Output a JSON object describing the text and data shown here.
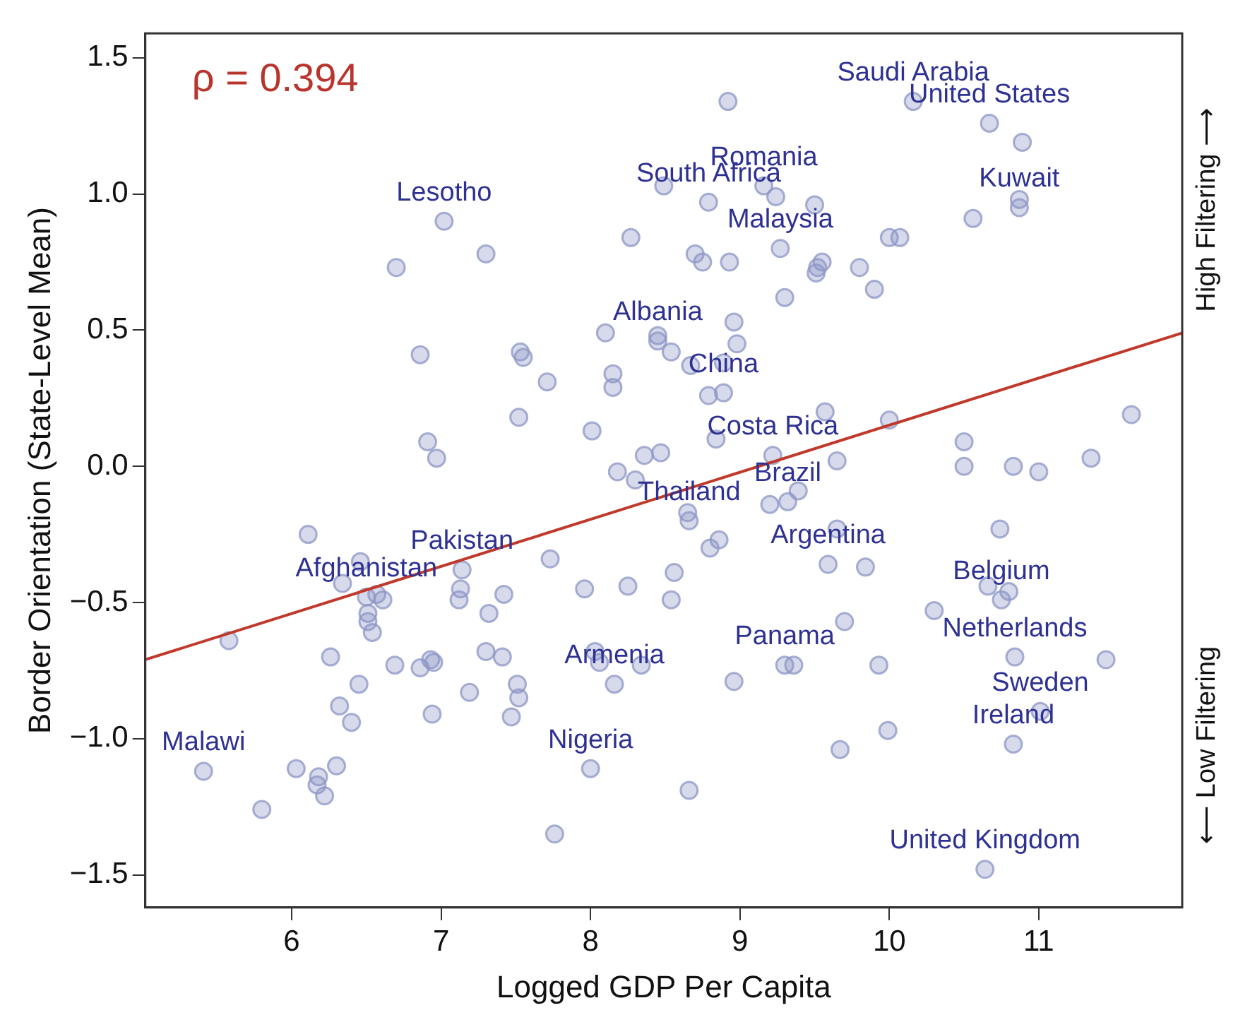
{
  "chart_data": {
    "type": "scatter",
    "xlabel": "Logged GDP Per Capita",
    "ylabel": "Border Orientation (State-Level Mean)",
    "xlim": [
      5.02,
      11.96
    ],
    "ylim": [
      -1.62,
      1.59
    ],
    "xticks": [
      6,
      7,
      8,
      9,
      10,
      11
    ],
    "yticks": [
      {
        "value": -1.5,
        "label": "−1.5"
      },
      {
        "value": -1,
        "label": "−1.0"
      },
      {
        "value": -0.5,
        "label": "−0.5"
      },
      {
        "value": 0,
        "label": "0.0"
      },
      {
        "value": 0.5,
        "label": "0.5"
      },
      {
        "value": 1,
        "label": "1.0"
      },
      {
        "value": 1.5,
        "label": "1.5"
      }
    ],
    "grid": false,
    "legend": false,
    "series": [
      {
        "marker": "circle",
        "color": "#8c96c6",
        "x": [
          5.41,
          5.58,
          5.8,
          6.03,
          6.11,
          6.18,
          6.17,
          6.22,
          6.3,
          6.26,
          6.32,
          6.4,
          6.34,
          6.46,
          6.45,
          6.5,
          6.57,
          6.61,
          6.51,
          6.51,
          6.54,
          6.69,
          6.86,
          6.93,
          6.95,
          6.94,
          7.14,
          7.13,
          7.12,
          7.32,
          7.42,
          7.3,
          7.41,
          7.19,
          7.51,
          7.52,
          7.47,
          7.73,
          7.96,
          8.25,
          8.54,
          8.56,
          8.03,
          8.06,
          8.34,
          8.16,
          8.0,
          7.76,
          8.18,
          8.3,
          7.02,
          7.3,
          6.7,
          8.27,
          8.49,
          6.86,
          7.53,
          7.55,
          7.71,
          8.1,
          8.45,
          8.45,
          8.54,
          8.15,
          8.15,
          7.52,
          8.01,
          6.91,
          6.97,
          8.36,
          8.47,
          8.92,
          10.16,
          10.67,
          10.89,
          9.16,
          9.24,
          8.79,
          9.5,
          10.87,
          10.87,
          10.56,
          10.0,
          10.07,
          8.7,
          8.75,
          8.93,
          9.27,
          9.55,
          9.52,
          9.51,
          9.8,
          9.9,
          9.3,
          8.96,
          8.98,
          8.67,
          8.89,
          8.79,
          8.89,
          9.57,
          8.84,
          10.0,
          11.62,
          10.5,
          10.5,
          10.83,
          11.0,
          11.35,
          9.65,
          9.22,
          9.39,
          9.32,
          9.2,
          8.65,
          8.66,
          8.86,
          8.8,
          9.65,
          10.74,
          9.59,
          9.84,
          10.66,
          10.8,
          10.75,
          10.3,
          9.7,
          9.3,
          9.36,
          9.93,
          8.96,
          10.84,
          11.45,
          11.01,
          9.99,
          9.67,
          10.83,
          8.66,
          10.64
        ],
        "values": [
          -1.12,
          -0.64,
          -1.26,
          -1.11,
          -0.25,
          -1.14,
          -1.17,
          -1.21,
          -1.1,
          -0.7,
          -0.88,
          -0.94,
          -0.43,
          -0.35,
          -0.8,
          -0.48,
          -0.47,
          -0.49,
          -0.54,
          -0.57,
          -0.61,
          -0.73,
          -0.74,
          -0.71,
          -0.72,
          -0.91,
          -0.38,
          -0.45,
          -0.49,
          -0.54,
          -0.47,
          -0.68,
          -0.7,
          -0.83,
          -0.8,
          -0.85,
          -0.92,
          -0.34,
          -0.45,
          -0.44,
          -0.49,
          -0.39,
          -0.68,
          -0.72,
          -0.73,
          -0.8,
          -1.11,
          -1.35,
          -0.02,
          -0.05,
          0.9,
          0.78,
          0.73,
          0.84,
          1.03,
          0.41,
          0.42,
          0.4,
          0.31,
          0.49,
          0.48,
          0.46,
          0.42,
          0.34,
          0.29,
          0.18,
          0.13,
          0.09,
          0.03,
          0.04,
          0.05,
          1.34,
          1.34,
          1.26,
          1.19,
          1.03,
          0.99,
          0.97,
          0.96,
          0.98,
          0.95,
          0.91,
          0.84,
          0.84,
          0.78,
          0.75,
          0.75,
          0.8,
          0.75,
          0.73,
          0.71,
          0.73,
          0.65,
          0.62,
          0.53,
          0.45,
          0.37,
          0.38,
          0.26,
          0.27,
          0.2,
          0.1,
          0.17,
          0.19,
          0.09,
          0.0,
          0.0,
          -0.02,
          0.03,
          0.02,
          0.04,
          -0.09,
          -0.13,
          -0.14,
          -0.17,
          -0.2,
          -0.27,
          -0.3,
          -0.23,
          -0.23,
          -0.36,
          -0.37,
          -0.44,
          -0.46,
          -0.49,
          -0.53,
          -0.57,
          -0.73,
          -0.73,
          -0.73,
          -0.79,
          -0.7,
          -0.71,
          -0.9,
          -0.97,
          -1.04,
          -1.02,
          -1.19,
          -1.48
        ]
      },
      {
        "type": "line",
        "color": "#c0392b",
        "x": [
          5.02,
          11.96
        ],
        "values": [
          -0.71,
          0.49
        ]
      }
    ],
    "annotations": [
      "ρ = 0.394",
      "High Filtering ⟶",
      "⟵ Low Filtering",
      {
        "text": "Saudi Arabia",
        "x": 10.16,
        "y": 1.34
      },
      {
        "text": "United States",
        "x": 10.67,
        "y": 1.26
      },
      {
        "text": "Romania",
        "x": 9.16,
        "y": 1.03
      },
      {
        "text": "South Africa",
        "x": 8.79,
        "y": 0.97
      },
      {
        "text": "Lesotho",
        "x": 7.02,
        "y": 0.9
      },
      {
        "text": "Kuwait",
        "x": 10.87,
        "y": 0.95
      },
      {
        "text": "Malaysia",
        "x": 9.27,
        "y": 0.8
      },
      {
        "text": "Albania",
        "x": 8.45,
        "y": 0.46
      },
      {
        "text": "China",
        "x": 8.89,
        "y": 0.27
      },
      {
        "text": "Costa Rica",
        "x": 9.22,
        "y": 0.04
      },
      {
        "text": "Brazil",
        "x": 9.32,
        "y": -0.13
      },
      {
        "text": "Thailand",
        "x": 8.66,
        "y": -0.2
      },
      {
        "text": "Pakistan",
        "x": 7.14,
        "y": -0.38
      },
      {
        "text": "Afghanistan",
        "x": 6.5,
        "y": -0.48
      },
      {
        "text": "Argentina",
        "x": 9.59,
        "y": -0.36
      },
      {
        "text": "Belgium",
        "x": 10.75,
        "y": -0.49
      },
      {
        "text": "Netherlands",
        "x": 10.84,
        "y": -0.7
      },
      {
        "text": "Panama",
        "x": 9.3,
        "y": -0.73
      },
      {
        "text": "Armenia",
        "x": 8.16,
        "y": -0.8
      },
      {
        "text": "Sweden",
        "x": 11.01,
        "y": -0.9
      },
      {
        "text": "Ireland",
        "x": 10.83,
        "y": -1.02
      },
      {
        "text": "Malawi",
        "x": 5.41,
        "y": -1.12
      },
      {
        "text": "Nigeria",
        "x": 8.0,
        "y": -1.11
      },
      {
        "text": "United Kingdom",
        "x": 10.64,
        "y": -1.48
      }
    ]
  }
}
